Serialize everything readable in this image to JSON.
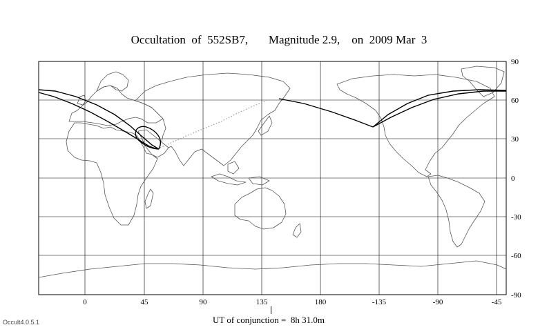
{
  "title": "Occultation  of  552SB7,       Magnitude 2.9,    on  2009 Mar  3",
  "x_ticks": [
    "0",
    "45",
    "90",
    "135",
    "180",
    "-135",
    "-90",
    "-45"
  ],
  "y_ticks": [
    "90",
    "60",
    "30",
    "0",
    "-30",
    "-60",
    "-90"
  ],
  "utc_label": "UT of conjunction =  8h 31.0m",
  "version": "Occult4.0.5.1",
  "colors": {
    "coast": "#555555",
    "grid": "#000000",
    "path": "#000000",
    "track": "#888888"
  }
}
